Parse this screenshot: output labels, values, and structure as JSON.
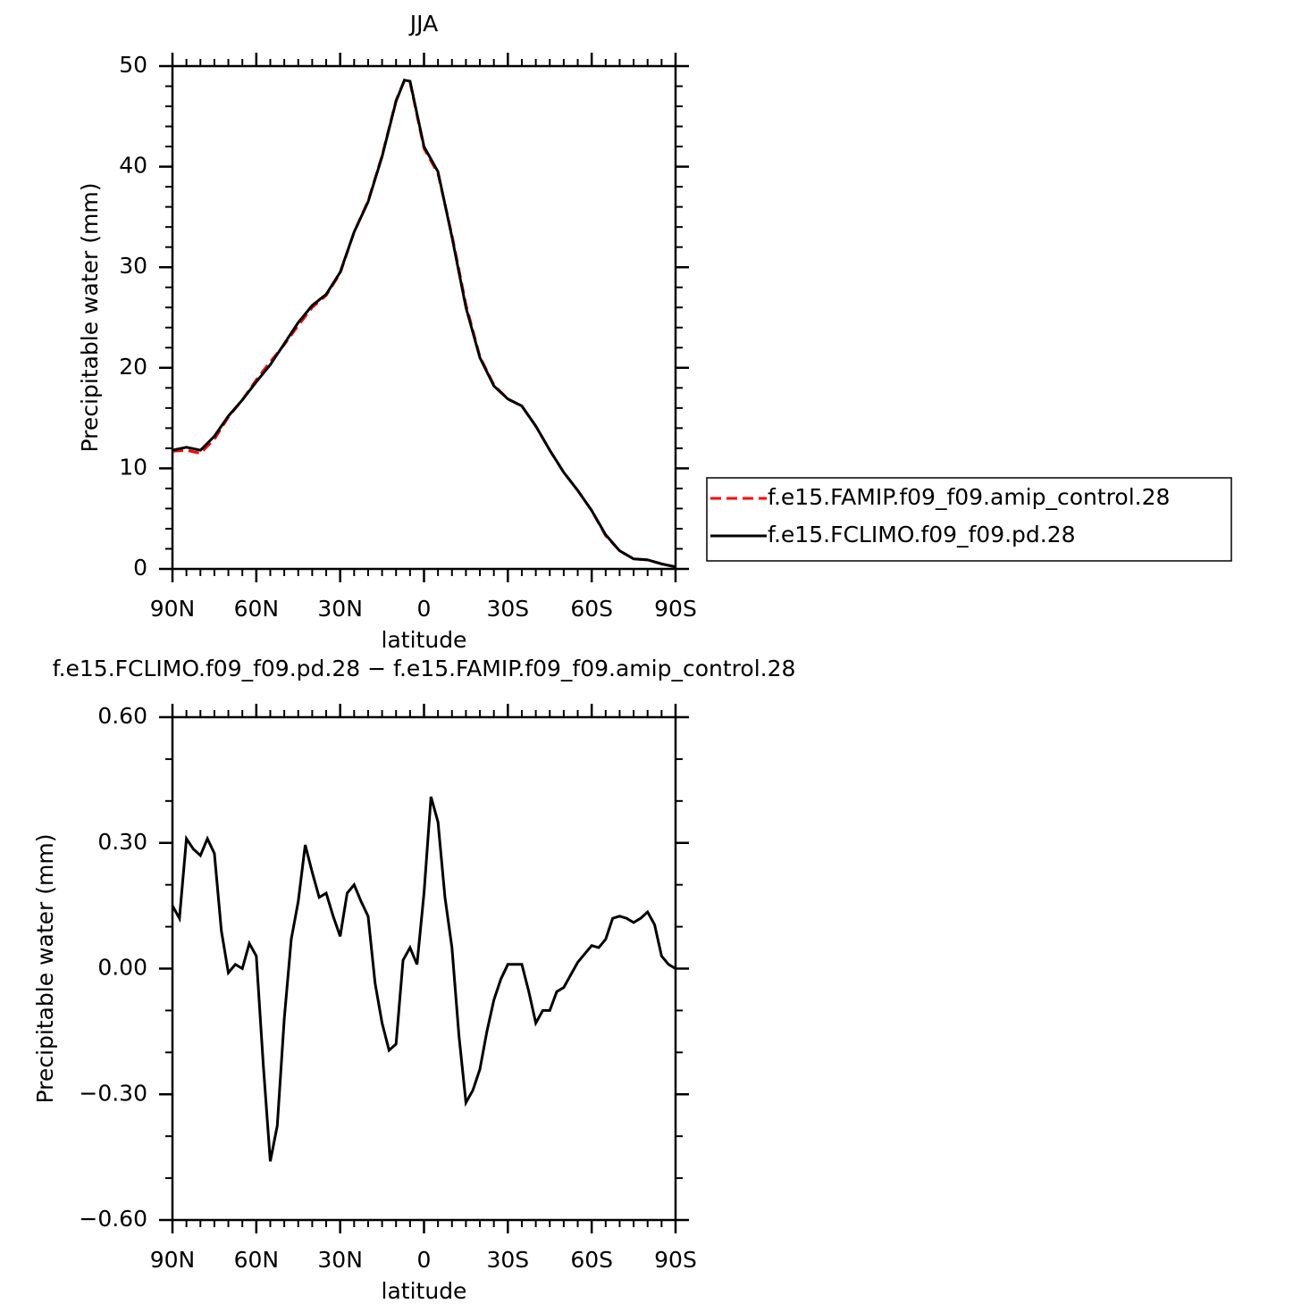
{
  "chart_data": [
    {
      "type": "line",
      "title": "JJA",
      "xlabel": "latitude",
      "ylabel": "Precipitable water (mm)",
      "x": [
        90,
        85,
        80,
        75,
        70,
        65,
        60,
        55,
        50,
        45,
        40,
        35,
        30,
        25,
        20,
        15,
        10,
        7,
        5,
        0,
        -5,
        -10,
        -15,
        -20,
        -25,
        -30,
        -35,
        -40,
        -45,
        -50,
        -55,
        -60,
        -65,
        -70,
        -75,
        -80,
        -85,
        -90
      ],
      "series": [
        {
          "name": "f.e15.FAMIP.f09_f09.amip_control.28",
          "color": "#ff0000",
          "line_style": "dashed",
          "values": [
            11.7,
            11.8,
            11.5,
            12.9,
            15.1,
            16.8,
            18.8,
            20.6,
            22.3,
            24.2,
            26.0,
            27.2,
            29.4,
            33.5,
            36.6,
            41.1,
            46.6,
            48.6,
            48.4,
            41.8,
            39.3,
            33.2,
            26.3,
            21.1,
            18.3,
            16.9,
            16.2,
            14.2,
            11.8,
            9.6,
            7.8,
            5.8,
            3.3,
            1.8,
            1.0,
            0.9,
            0.5,
            0.2
          ]
        },
        {
          "name": "f.e15.FCLIMO.f09_f09.pd.28",
          "color": "#000000",
          "line_style": "solid",
          "values": [
            11.8,
            12.1,
            11.8,
            13.2,
            15.2,
            16.8,
            18.6,
            20.3,
            22.4,
            24.5,
            26.2,
            27.3,
            29.5,
            33.5,
            36.5,
            41.0,
            46.5,
            48.6,
            48.5,
            42.0,
            39.5,
            33.0,
            26.0,
            21.0,
            18.2,
            16.9,
            16.2,
            14.2,
            11.8,
            9.6,
            7.8,
            5.8,
            3.4,
            1.8,
            1.0,
            0.9,
            0.5,
            0.2
          ]
        }
      ],
      "xlim": [
        90,
        -90
      ],
      "xticks": [
        {
          "value": 90,
          "label": "90N"
        },
        {
          "value": 60,
          "label": "60N"
        },
        {
          "value": 30,
          "label": "30N"
        },
        0,
        {
          "value": -30,
          "label": "30S"
        },
        {
          "value": -60,
          "label": "60S"
        },
        {
          "value": -90,
          "label": "90S"
        }
      ],
      "ylim": [
        0,
        50
      ],
      "yticks": [
        0,
        10,
        20,
        30,
        40,
        50
      ],
      "legend": "right"
    },
    {
      "type": "line",
      "title": "f.e15.FCLIMO.f09_f09.pd.28 − f.e15.FAMIP.f09_f09.amip_control.28",
      "xlabel": "latitude",
      "ylabel": "Precipitable water (mm)",
      "x": [
        90,
        87.5,
        85,
        82.5,
        80,
        77.5,
        75,
        72.5,
        70,
        67.5,
        65,
        62.5,
        60,
        57.5,
        55,
        52.5,
        50,
        47.5,
        45,
        42.5,
        40,
        37.5,
        35,
        32.5,
        30,
        27.5,
        25,
        22.5,
        20,
        17.5,
        15,
        12.5,
        10,
        7.5,
        5,
        2.5,
        0,
        -2.5,
        -5,
        -7.5,
        -10,
        -12.5,
        -15,
        -17.5,
        -20,
        -22.5,
        -25,
        -27.5,
        -30,
        -32.5,
        -35,
        -37.5,
        -40,
        -42.5,
        -45,
        -47.5,
        -50,
        -52.5,
        -55,
        -57.5,
        -60,
        -62.5,
        -65,
        -67.5,
        -70,
        -72.5,
        -75,
        -77.5,
        -80,
        -82.5,
        -85,
        -87.5,
        -90
      ],
      "series": [
        {
          "color": "#000000",
          "line_style": "solid",
          "values": [
            0.15,
            0.12,
            0.31,
            0.285,
            0.27,
            0.31,
            0.275,
            0.09,
            -0.01,
            0.01,
            0.0,
            0.06,
            0.03,
            -0.23,
            -0.46,
            -0.375,
            -0.12,
            0.07,
            0.16,
            0.295,
            0.23,
            0.17,
            0.18,
            0.125,
            0.077,
            0.18,
            0.2,
            0.16,
            0.125,
            -0.035,
            -0.13,
            -0.195,
            -0.18,
            0.02,
            0.05,
            0.01,
            0.18,
            0.41,
            0.35,
            0.17,
            0.05,
            -0.16,
            -0.32,
            -0.29,
            -0.24,
            -0.15,
            -0.075,
            -0.025,
            0.01,
            0.01,
            0.01,
            -0.055,
            -0.13,
            -0.1,
            -0.1,
            -0.055,
            -0.045,
            -0.015,
            0.015,
            0.035,
            0.055,
            0.05,
            0.07,
            0.12,
            0.125,
            0.12,
            0.11,
            0.12,
            0.135,
            0.105,
            0.03,
            0.01,
            0.0
          ]
        }
      ],
      "xlim": [
        90,
        -90
      ],
      "xticks": [
        {
          "value": 90,
          "label": "90N"
        },
        {
          "value": 60,
          "label": "60N"
        },
        {
          "value": 30,
          "label": "30N"
        },
        0,
        {
          "value": -30,
          "label": "30S"
        },
        {
          "value": -60,
          "label": "60S"
        },
        {
          "value": -90,
          "label": "90S"
        }
      ],
      "ylim": [
        -0.6,
        0.6
      ],
      "yticks": [
        {
          "value": -0.6,
          "label": "−0.60"
        },
        {
          "value": -0.3,
          "label": "−0.30"
        },
        {
          "value": 0,
          "label": "0.00"
        },
        {
          "value": 0.3,
          "label": "0.30"
        },
        {
          "value": 0.6,
          "label": "0.60"
        }
      ]
    }
  ]
}
